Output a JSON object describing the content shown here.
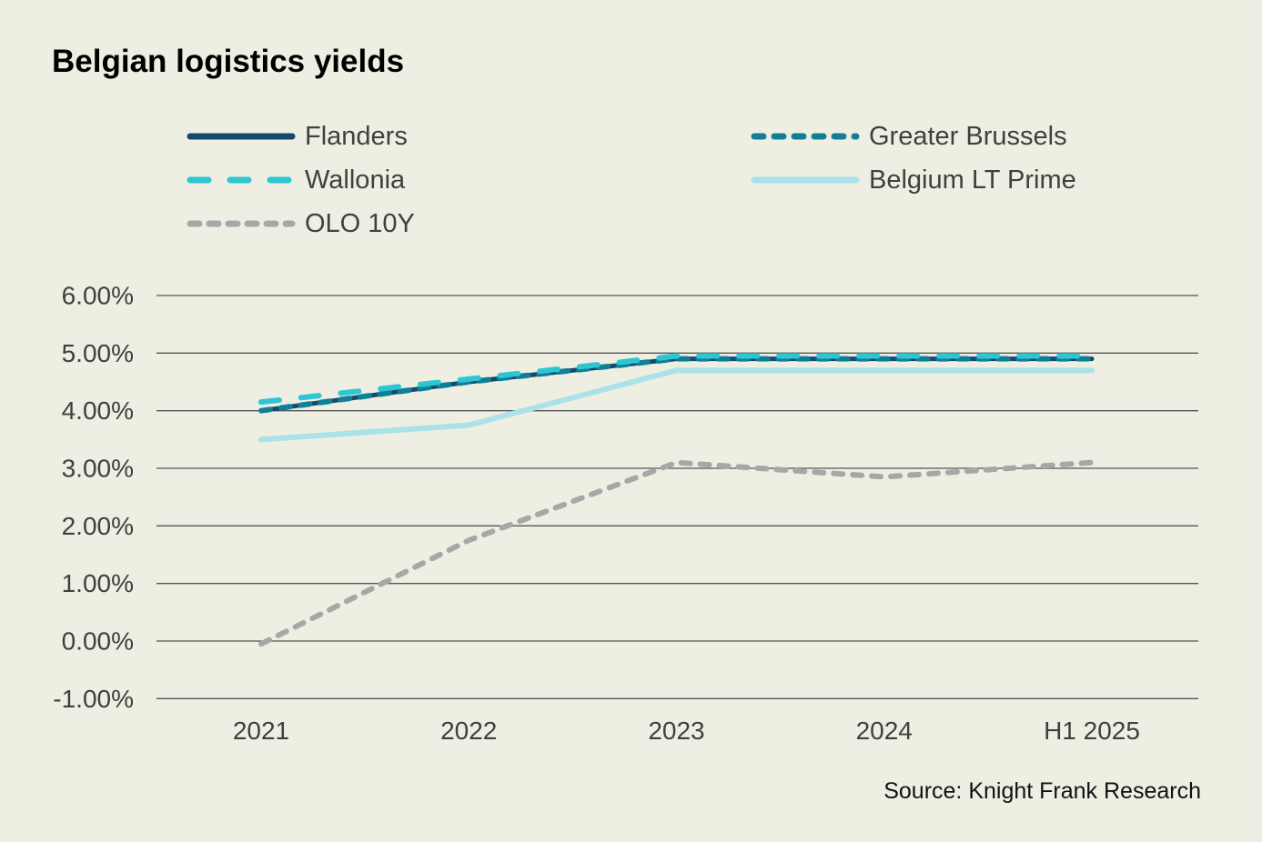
{
  "title": "Belgian logistics yields",
  "source": "Source: Knight Frank Research",
  "colors": {
    "background": "#EFEEE2",
    "gridline": "#555555",
    "axis_text": "#3F3F3F",
    "title_text": "#000000",
    "legend_text": "#404040"
  },
  "chart_data": {
    "type": "line",
    "title": "Belgian logistics yields",
    "xlabel": "",
    "ylabel": "",
    "categories": [
      "2021",
      "2022",
      "2023",
      "2024",
      "H1 2025"
    ],
    "ylim": [
      -1,
      6
    ],
    "grid": true,
    "legend_position": "top",
    "y_ticks": {
      "values": [
        6,
        5,
        4,
        3,
        2,
        1,
        0,
        -1
      ],
      "labels": [
        "6.00%",
        "5.00%",
        "4.00%",
        "3.00%",
        "2.00%",
        "1.00%",
        "0.00%",
        "-1.00%"
      ]
    },
    "series": [
      {
        "name": "Flanders",
        "values": [
          4.0,
          4.5,
          4.9,
          4.9,
          4.9
        ],
        "color": "#16496C",
        "line_style": "solid"
      },
      {
        "name": "Greater Brussels",
        "values": [
          4.0,
          4.5,
          4.9,
          4.9,
          4.9
        ],
        "color": "#0F8096",
        "line_style": "dashed-medium"
      },
      {
        "name": "Wallonia",
        "values": [
          4.15,
          4.55,
          4.95,
          4.95,
          4.95
        ],
        "color": "#2EC6D3",
        "line_style": "dashed-long"
      },
      {
        "name": "Belgium LT Prime",
        "values": [
          3.5,
          3.75,
          4.7,
          4.7,
          4.7
        ],
        "color": "#ABE1E8",
        "line_style": "solid"
      },
      {
        "name": "OLO 10Y",
        "values": [
          -0.05,
          1.75,
          3.1,
          2.85,
          3.1
        ],
        "color": "#A7A7A7",
        "line_style": "dashed-short"
      }
    ]
  }
}
